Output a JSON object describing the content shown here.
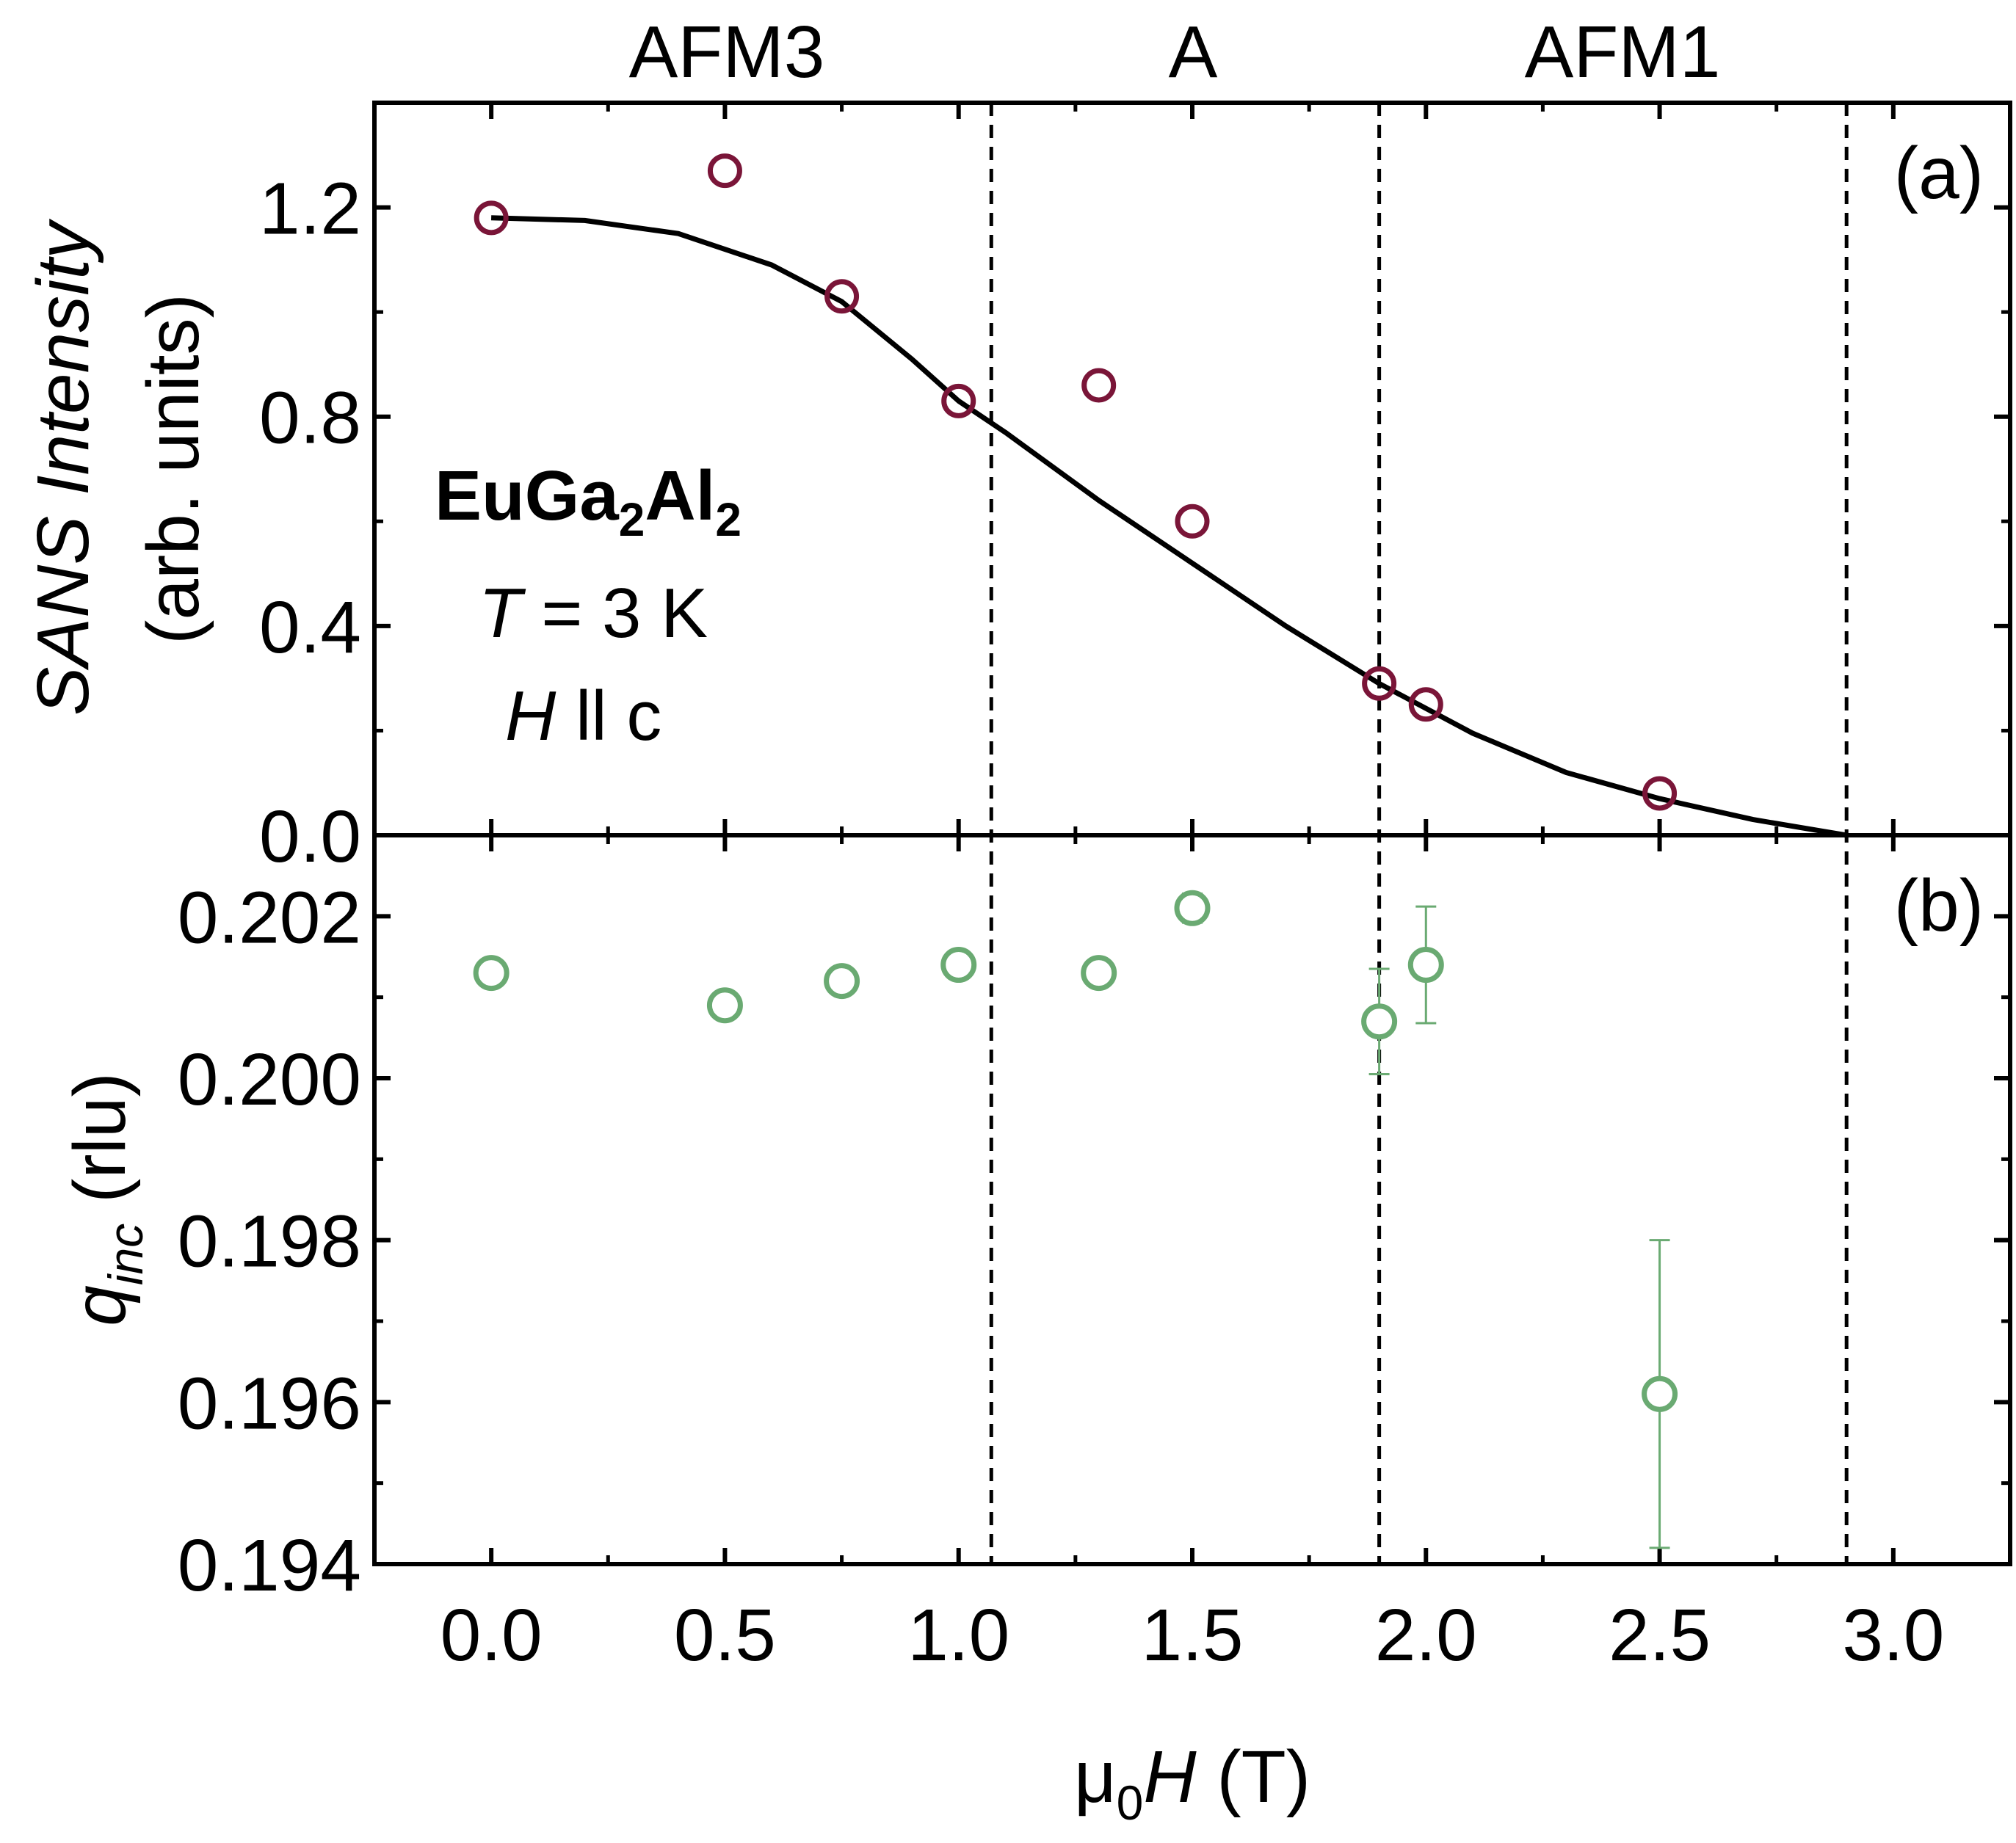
{
  "colors": {
    "axis": "#000000",
    "intensity_marker": "#7a1538",
    "q_marker": "#6aaa72",
    "fit_line": "#000000"
  },
  "phases": [
    "AFM3",
    "A",
    "AFM1"
  ],
  "annotation": {
    "compound": "EuGa",
    "compound_sub1": "2",
    "compound_mid": "Al",
    "compound_sub2": "2",
    "temp_sym": "T",
    "temp_val": " = 3 K",
    "field_sym": "H",
    "field_rel": " ll c"
  },
  "chart_data": [
    {
      "type": "scatter",
      "panel_label": "(a)",
      "ylabel": {
        "italic": "SANS Intensity",
        "plain": "(arb. units)"
      },
      "xlim": [
        -0.25,
        3.25
      ],
      "ylim": [
        0.0,
        1.4
      ],
      "yticks": [
        0.0,
        0.4,
        0.8,
        1.2
      ],
      "ytick_labels": [
        "0.0",
        "0.4",
        "0.8",
        "1.2"
      ],
      "phase_boundaries": [
        1.07,
        1.9,
        2.9
      ],
      "series": [
        {
          "name": "SANS intensity",
          "x": [
            0.0,
            0.5,
            0.75,
            1.0,
            1.3,
            1.5,
            1.9,
            2.0,
            2.5
          ],
          "y": [
            1.18,
            1.27,
            1.03,
            0.83,
            0.86,
            0.6,
            0.29,
            0.25,
            0.08
          ]
        },
        {
          "name": "fit",
          "type": "line",
          "x": [
            0.0,
            0.2,
            0.4,
            0.6,
            0.75,
            0.9,
            1.0,
            1.1,
            1.3,
            1.5,
            1.7,
            1.9,
            2.1,
            2.3,
            2.5,
            2.7,
            2.9
          ],
          "y": [
            1.18,
            1.175,
            1.15,
            1.09,
            1.02,
            0.91,
            0.83,
            0.77,
            0.64,
            0.52,
            0.4,
            0.29,
            0.195,
            0.12,
            0.07,
            0.03,
            0.0
          ]
        }
      ]
    },
    {
      "type": "scatter",
      "panel_label": "(b)",
      "ylabel": {
        "symbol": "q",
        "sub": "inc",
        "unit": " (rlu)"
      },
      "xlabel": {
        "mu": "μ",
        "sub": "0",
        "sym": "H",
        "unit": " (T)"
      },
      "xlim": [
        -0.25,
        3.25
      ],
      "ylim": [
        0.194,
        0.203
      ],
      "yticks": [
        0.194,
        0.196,
        0.198,
        0.2,
        0.202
      ],
      "ytick_labels": [
        "0.194",
        "0.196",
        "0.198",
        "0.200",
        "0.202"
      ],
      "xticks": [
        0.0,
        0.5,
        1.0,
        1.5,
        2.0,
        2.5,
        3.0
      ],
      "xtick_labels": [
        "0.0",
        "0.5",
        "1.0",
        "1.5",
        "2.0",
        "2.5",
        "3.0"
      ],
      "series": [
        {
          "name": "q_inc",
          "x": [
            0.0,
            0.5,
            0.75,
            1.0,
            1.3,
            1.5,
            1.9,
            2.0,
            2.5
          ],
          "y": [
            0.2013,
            0.2009,
            0.2012,
            0.2014,
            0.2013,
            0.2021,
            0.2007,
            0.2014,
            0.1961
          ],
          "err": [
            5e-05,
            6e-05,
            0.00012,
            0.00017,
            0.00015,
            0.00018,
            0.00065,
            0.00072,
            0.0019
          ]
        }
      ]
    }
  ]
}
